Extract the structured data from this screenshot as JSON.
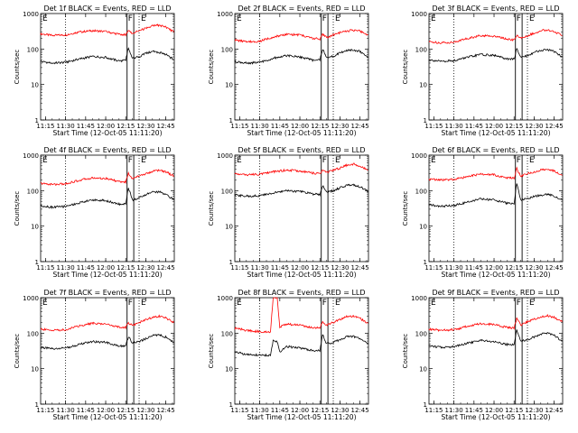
{
  "figure": {
    "xlabel": "Start Time (12-Oct-05 11:11:20)",
    "ylabel": "Counts/sec",
    "x_ticks": [
      "11:15",
      "11:30",
      "11:45",
      "12:00",
      "12:15",
      "12:30",
      "12:45"
    ],
    "y_ticks": [
      "1",
      "10",
      "100",
      "1000"
    ],
    "marker_labels": [
      "E",
      "F",
      "E"
    ],
    "series_colors": {
      "events": "#000000",
      "lld": "#ff0000"
    }
  },
  "chart_data": [
    {
      "type": "line",
      "title": "Det 1f BLACK = Events, RED = LLD",
      "xlim": [
        "11:11:20",
        "12:51:20"
      ],
      "ylim": [
        1,
        1000
      ],
      "yscale": "log",
      "dotted_lines": [
        "11:30",
        "12:25"
      ],
      "solid_lines": [
        "12:16",
        "12:21"
      ],
      "x": [
        "11:11",
        "11:20",
        "11:30",
        "11:40",
        "11:50",
        "12:00",
        "12:10",
        "12:15",
        "12:17",
        "12:20",
        "12:25",
        "12:30",
        "12:35",
        "12:40",
        "12:45",
        "12:51"
      ],
      "series": [
        {
          "color": "red",
          "values": [
            270,
            240,
            250,
            300,
            330,
            310,
            260,
            250,
            330,
            280,
            330,
            380,
            450,
            470,
            420,
            300
          ]
        },
        {
          "color": "black",
          "values": [
            45,
            40,
            42,
            52,
            62,
            58,
            46,
            48,
            110,
            55,
            60,
            75,
            85,
            80,
            70,
            50
          ]
        }
      ]
    },
    {
      "type": "line",
      "title": "Det 2f BLACK = Events, RED = LLD",
      "xlim": [
        "11:11:20",
        "12:51:20"
      ],
      "ylim": [
        1,
        1000
      ],
      "yscale": "log",
      "dotted_lines": [
        "11:30",
        "12:25"
      ],
      "solid_lines": [
        "12:16",
        "12:21"
      ],
      "x": [
        "11:11",
        "11:20",
        "11:30",
        "11:40",
        "11:50",
        "12:00",
        "12:10",
        "12:15",
        "12:17",
        "12:20",
        "12:25",
        "12:30",
        "12:35",
        "12:40",
        "12:45",
        "12:51"
      ],
      "series": [
        {
          "color": "red",
          "values": [
            180,
            160,
            165,
            220,
            260,
            250,
            200,
            190,
            260,
            210,
            250,
            290,
            320,
            340,
            320,
            250
          ]
        },
        {
          "color": "black",
          "values": [
            45,
            40,
            42,
            55,
            65,
            60,
            48,
            50,
            100,
            55,
            62,
            78,
            90,
            95,
            85,
            60
          ]
        }
      ]
    },
    {
      "type": "line",
      "title": "Det 3f BLACK = Events, RED = LLD",
      "xlim": [
        "11:11:20",
        "12:51:20"
      ],
      "ylim": [
        1,
        1000
      ],
      "yscale": "log",
      "dotted_lines": [
        "11:30",
        "12:25"
      ],
      "solid_lines": [
        "12:16",
        "12:21"
      ],
      "x": [
        "11:11",
        "11:20",
        "11:30",
        "11:40",
        "11:50",
        "12:00",
        "12:10",
        "12:15",
        "12:17",
        "12:20",
        "12:25",
        "12:30",
        "12:35",
        "12:40",
        "12:45",
        "12:51"
      ],
      "series": [
        {
          "color": "red",
          "values": [
            160,
            150,
            155,
            200,
            240,
            230,
            190,
            180,
            240,
            200,
            240,
            280,
            330,
            350,
            310,
            240
          ]
        },
        {
          "color": "black",
          "values": [
            50,
            45,
            47,
            58,
            70,
            66,
            52,
            52,
            100,
            58,
            65,
            80,
            92,
            95,
            85,
            60
          ]
        }
      ]
    },
    {
      "type": "line",
      "title": "Det 4f BLACK = Events, RED = LLD",
      "xlim": [
        "11:11:20",
        "12:51:20"
      ],
      "ylim": [
        1,
        1000
      ],
      "yscale": "log",
      "dotted_lines": [
        "11:30",
        "12:25"
      ],
      "solid_lines": [
        "12:16",
        "12:21"
      ],
      "x": [
        "11:11",
        "11:20",
        "11:30",
        "11:40",
        "11:50",
        "12:00",
        "12:10",
        "12:15",
        "12:17",
        "12:20",
        "12:25",
        "12:30",
        "12:35",
        "12:40",
        "12:45",
        "12:51"
      ],
      "series": [
        {
          "color": "red",
          "values": [
            160,
            150,
            155,
            195,
            230,
            220,
            180,
            175,
            320,
            210,
            260,
            300,
            350,
            380,
            340,
            260
          ]
        },
        {
          "color": "black",
          "values": [
            38,
            34,
            36,
            45,
            55,
            52,
            42,
            42,
            120,
            55,
            62,
            78,
            90,
            92,
            80,
            55
          ]
        }
      ]
    },
    {
      "type": "line",
      "title": "Det 5f BLACK = Events, RED = LLD",
      "xlim": [
        "11:11:20",
        "12:51:20"
      ],
      "ylim": [
        1,
        1000
      ],
      "yscale": "log",
      "dotted_lines": [
        "11:30",
        "12:25"
      ],
      "solid_lines": [
        "12:16",
        "12:21"
      ],
      "x": [
        "11:11",
        "11:20",
        "11:30",
        "11:40",
        "11:50",
        "12:00",
        "12:10",
        "12:15",
        "12:17",
        "12:20",
        "12:25",
        "12:30",
        "12:35",
        "12:40",
        "12:45",
        "12:51"
      ],
      "series": [
        {
          "color": "red",
          "values": [
            300,
            280,
            290,
            340,
            380,
            360,
            310,
            300,
            380,
            330,
            380,
            430,
            520,
            560,
            500,
            380
          ]
        },
        {
          "color": "black",
          "values": [
            75,
            70,
            72,
            85,
            100,
            95,
            80,
            78,
            140,
            90,
            100,
            120,
            140,
            145,
            130,
            95
          ]
        }
      ]
    },
    {
      "type": "line",
      "title": "Det 6f BLACK = Events, RED = LLD",
      "xlim": [
        "11:11:20",
        "12:51:20"
      ],
      "ylim": [
        1,
        1000
      ],
      "yscale": "log",
      "dotted_lines": [
        "11:30",
        "12:25"
      ],
      "solid_lines": [
        "12:16",
        "12:21"
      ],
      "x": [
        "11:11",
        "11:20",
        "11:30",
        "11:40",
        "11:50",
        "12:00",
        "12:10",
        "12:15",
        "12:17",
        "12:20",
        "12:25",
        "12:30",
        "12:35",
        "12:40",
        "12:45",
        "12:51"
      ],
      "series": [
        {
          "color": "red",
          "values": [
            210,
            200,
            205,
            250,
            290,
            280,
            230,
            225,
            420,
            260,
            300,
            330,
            380,
            400,
            360,
            270
          ]
        },
        {
          "color": "black",
          "values": [
            40,
            36,
            38,
            48,
            58,
            55,
            44,
            44,
            160,
            55,
            60,
            68,
            75,
            78,
            70,
            55
          ]
        }
      ]
    },
    {
      "type": "line",
      "title": "Det 7f BLACK = Events, RED = LLD",
      "xlim": [
        "11:11:20",
        "12:51:20"
      ],
      "ylim": [
        1,
        1000
      ],
      "yscale": "log",
      "dotted_lines": [
        "11:30",
        "12:25"
      ],
      "solid_lines": [
        "12:16",
        "12:21"
      ],
      "x": [
        "11:11",
        "11:20",
        "11:30",
        "11:40",
        "11:50",
        "12:00",
        "12:10",
        "12:15",
        "12:17",
        "12:20",
        "12:25",
        "12:30",
        "12:35",
        "12:40",
        "12:45",
        "12:51"
      ],
      "series": [
        {
          "color": "red",
          "values": [
            130,
            120,
            125,
            160,
            190,
            180,
            150,
            145,
            200,
            165,
            200,
            240,
            280,
            300,
            270,
            200
          ]
        },
        {
          "color": "black",
          "values": [
            40,
            36,
            38,
            48,
            58,
            55,
            44,
            44,
            80,
            52,
            58,
            70,
            85,
            88,
            78,
            55
          ]
        }
      ]
    },
    {
      "type": "line",
      "title": "Det 8f BLACK = Events, RED = LLD",
      "xlim": [
        "11:11:20",
        "12:51:20"
      ],
      "ylim": [
        1,
        1000
      ],
      "yscale": "log",
      "dotted_lines": [
        "11:30",
        "12:25"
      ],
      "solid_lines": [
        "12:16",
        "12:21"
      ],
      "x": [
        "11:11",
        "11:20",
        "11:30",
        "11:38",
        "11:40",
        "11:43",
        "11:45",
        "11:50",
        "12:00",
        "12:10",
        "12:15",
        "12:17",
        "12:20",
        "12:25",
        "12:30",
        "12:35",
        "12:40",
        "12:45",
        "12:51"
      ],
      "series": [
        {
          "color": "red",
          "values": [
            140,
            120,
            110,
            110,
            1000,
            1000,
            150,
            180,
            170,
            140,
            140,
            210,
            170,
            200,
            240,
            290,
            300,
            260,
            190
          ]
        },
        {
          "color": "black",
          "values": [
            30,
            25,
            24,
            24,
            60,
            60,
            30,
            42,
            38,
            32,
            32,
            95,
            50,
            55,
            65,
            78,
            80,
            70,
            50
          ]
        }
      ]
    },
    {
      "type": "line",
      "title": "Det 9f BLACK = Events, RED = LLD",
      "xlim": [
        "11:11:20",
        "12:51:20"
      ],
      "ylim": [
        1,
        1000
      ],
      "yscale": "log",
      "dotted_lines": [
        "11:30",
        "12:25"
      ],
      "solid_lines": [
        "12:16",
        "12:21"
      ],
      "x": [
        "11:11",
        "11:20",
        "11:30",
        "11:40",
        "11:50",
        "12:00",
        "12:10",
        "12:15",
        "12:17",
        "12:20",
        "12:25",
        "12:30",
        "12:35",
        "12:40",
        "12:45",
        "12:51"
      ],
      "series": [
        {
          "color": "red",
          "values": [
            130,
            120,
            125,
            155,
            185,
            175,
            145,
            140,
            260,
            170,
            210,
            250,
            290,
            310,
            280,
            210
          ]
        },
        {
          "color": "black",
          "values": [
            45,
            40,
            42,
            52,
            62,
            58,
            48,
            48,
            120,
            58,
            65,
            78,
            95,
            98,
            88,
            60
          ]
        }
      ]
    }
  ]
}
